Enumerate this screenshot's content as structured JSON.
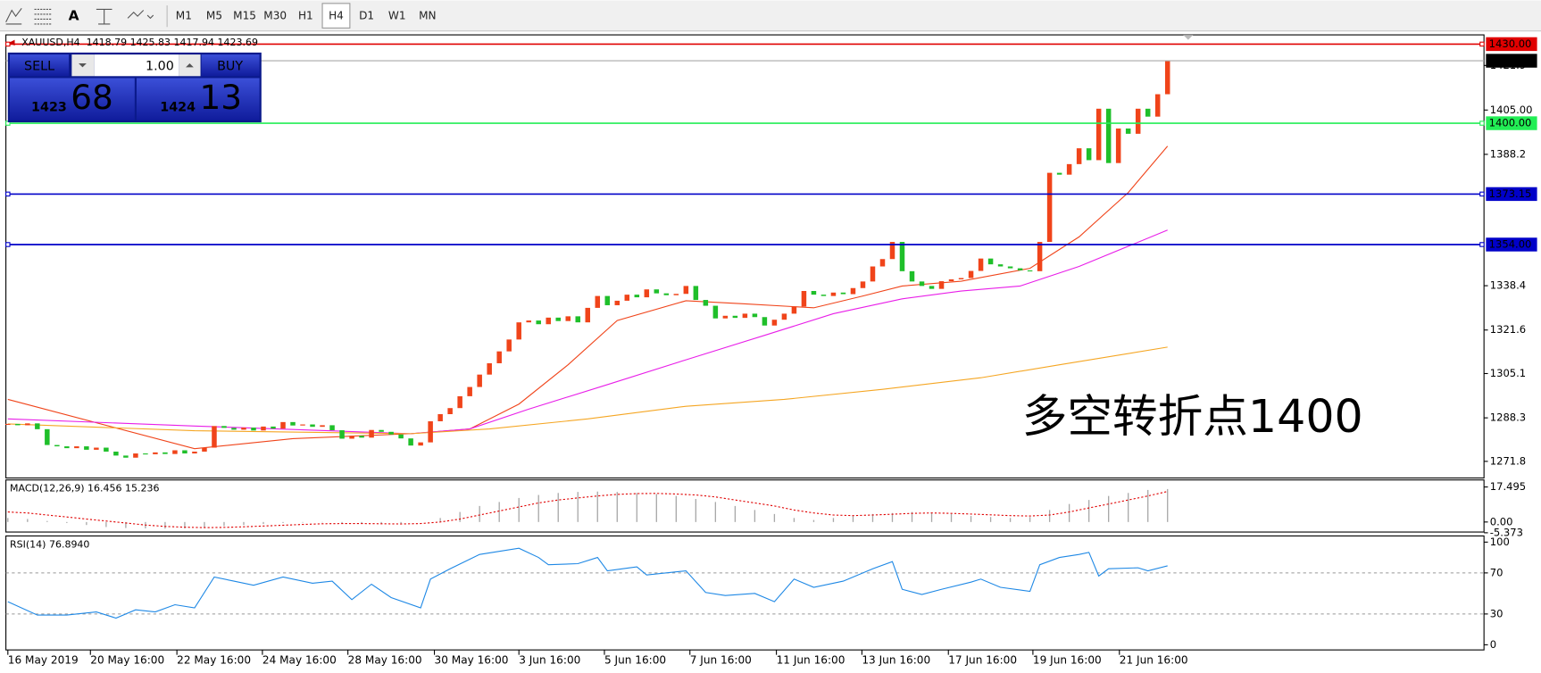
{
  "toolbar": {
    "tool_text": "A",
    "timeframes": [
      "M1",
      "M5",
      "M15",
      "M30",
      "H1",
      "H4",
      "D1",
      "W1",
      "MN"
    ],
    "active": 5
  },
  "trade_panel": {
    "sell": "SELL",
    "lots": "1.00",
    "buy": "BUY",
    "bid_big": "1423",
    "bid_small": "68",
    "ask_big": "1424",
    "ask_small": "13"
  },
  "chart_data": [
    {
      "type": "candlestick",
      "title": "XAUUSD,H4  1418.79 1425.83 1417.94 1423.69",
      "annotation": "多空转折点1400",
      "bull_color": "#f0441a",
      "bear_color": "#1fbf2a",
      "close": [
        1286,
        1285.5,
        1286.2,
        1284,
        1278,
        1277.5,
        1276.8,
        1277.5,
        1276.2,
        1277,
        1275.5,
        1274,
        1273.2,
        1274.8,
        1274.5,
        1275.2,
        1274.6,
        1276,
        1274.8,
        1275.5,
        1277,
        1285.2,
        1284.5,
        1283.8,
        1284.6,
        1283.5,
        1285,
        1284.2,
        1286.7,
        1285.4,
        1285.8,
        1284.9,
        1285.5,
        1283.6,
        1280.4,
        1281.5,
        1280.8,
        1283.7,
        1283,
        1282,
        1280.5,
        1277.8,
        1279,
        1287,
        1289.7,
        1292,
        1296.5,
        1300,
        1304.7,
        1309,
        1313.5,
        1318,
        1324.5,
        1325.2,
        1323.8,
        1326.3,
        1325,
        1326.8,
        1324.5,
        1330,
        1334.5,
        1331,
        1332.7,
        1335,
        1334,
        1337,
        1335.5,
        1334.8,
        1335.3,
        1338.3,
        1333,
        1330.8,
        1326,
        1327,
        1326.2,
        1327.8,
        1326.5,
        1323.3,
        1325.5,
        1327.8,
        1330.5,
        1336.4,
        1335,
        1334.5,
        1335.8,
        1335.2,
        1337.5,
        1340,
        1345.7,
        1348.5,
        1355,
        1343.9,
        1340,
        1338.3,
        1337.2,
        1340.1,
        1340.8,
        1341.3,
        1344,
        1348.7,
        1346.5,
        1345.7,
        1345,
        1344.2,
        1343.9,
        1355,
        1381.2,
        1380.5,
        1384.5,
        1390.5,
        1386,
        1405.5,
        1384.9,
        1398,
        1396,
        1405.5,
        1402.5,
        1411,
        1423.69
      ],
      "ma": [
        {
          "color": "#f0441a",
          "x": [
            0,
            19,
            29,
            41,
            47,
            52,
            57,
            62,
            69,
            75,
            82,
            87,
            91,
            97,
            104,
            109,
            114,
            118
          ],
          "values": [
            1295.3,
            1276.6,
            1280.4,
            1282.3,
            1284.1,
            1293.5,
            1308.4,
            1325.2,
            1332.7,
            1331.5,
            1330,
            1334.5,
            1338.3,
            1340.1,
            1345,
            1356.9,
            1373.7,
            1391.3
          ]
        },
        {
          "color": "#e81ee8",
          "x": [
            0,
            19,
            41,
            47,
            53,
            61,
            69,
            77,
            84,
            91,
            97,
            103,
            109,
            118
          ],
          "values": [
            1287.9,
            1285.2,
            1282.3,
            1284.1,
            1291.6,
            1300.9,
            1310.3,
            1319.6,
            1327.8,
            1333.4,
            1336.4,
            1338.3,
            1345.7,
            1359.5
          ]
        },
        {
          "color": "#f5a623",
          "x": [
            0,
            19,
            41,
            49,
            59,
            69,
            79,
            89,
            99,
            107,
            118
          ],
          "values": [
            1286,
            1283.4,
            1282.3,
            1284.1,
            1287.9,
            1292.7,
            1295.3,
            1299.1,
            1303.5,
            1308.4,
            1315.1
          ]
        }
      ],
      "levels": [
        {
          "value": 1430,
          "label": "1430.00",
          "color": "#e00000"
        },
        {
          "value": 1400,
          "label": "1400.00",
          "color": "#22ee55"
        },
        {
          "value": 1373.15,
          "label": "1373.15",
          "color": "#0000c8"
        },
        {
          "value": 1354,
          "label": "1354.00",
          "color": "#0000c8"
        }
      ],
      "current_price": 1423.69,
      "xlim": [
        -0.2,
        150.2
      ],
      "ylim": [
        1265.5,
        1433.5
      ],
      "yticks": [
        1421.9,
        {
          "value": 1405,
          "label": "1405.00"
        },
        1388.2,
        1338.4,
        1321.6,
        1305.1,
        1288.3,
        1271.8
      ]
    },
    {
      "type": "macd",
      "title": "MACD(12,26,9) 16.456 15.236",
      "x": [
        0,
        2,
        4,
        6,
        8,
        10,
        12,
        14,
        16,
        18,
        20,
        22,
        24,
        26,
        28,
        30,
        32,
        34,
        36,
        38,
        40,
        42,
        44,
        46,
        48,
        50,
        52,
        54,
        56,
        58,
        60,
        62,
        64,
        66,
        68,
        70,
        72,
        74,
        76,
        78,
        80,
        82,
        84,
        86,
        88,
        90,
        92,
        94,
        96,
        98,
        100,
        102,
        104,
        106,
        108,
        110,
        112,
        114,
        116,
        118
      ],
      "histogram": {
        "color": "#a8a8a8",
        "values": [
          2,
          1.5,
          0.5,
          -0.5,
          -1.5,
          -2.5,
          -3,
          -3.2,
          -3.3,
          -3.2,
          -3,
          -2,
          -1.5,
          -1,
          -0.5,
          -0.3,
          -0.2,
          -0.5,
          -0.8,
          -1,
          -1.2,
          0,
          2,
          5,
          8,
          10,
          12,
          13.5,
          14.5,
          15,
          15.2,
          15,
          14.5,
          14,
          13,
          11.5,
          10,
          8,
          6,
          4,
          2,
          1,
          2,
          3,
          4,
          4.5,
          5,
          4.5,
          4,
          3,
          2.5,
          2,
          2.5,
          6,
          9,
          11,
          13,
          14.5,
          16,
          16.456
        ]
      },
      "signal": {
        "color": "#e00000",
        "values": [
          5,
          4.5,
          3.5,
          2.5,
          1.5,
          0.5,
          -0.5,
          -1.5,
          -2.2,
          -2.6,
          -2.8,
          -2.7,
          -2.4,
          -2,
          -1.6,
          -1.2,
          -0.9,
          -0.8,
          -0.8,
          -0.9,
          -1,
          -0.8,
          0,
          1.5,
          3.5,
          5.5,
          7.5,
          9.5,
          11,
          12,
          13,
          13.8,
          14.2,
          14.3,
          14,
          13.5,
          12.5,
          11,
          9.5,
          8,
          6,
          4.5,
          3.5,
          3.2,
          3.5,
          3.9,
          4.3,
          4.5,
          4.3,
          4,
          3.6,
          3.2,
          3,
          3.5,
          5,
          7,
          9,
          11,
          13,
          15.236
        ]
      },
      "xlim": [
        -0.2,
        150.2
      ],
      "ylim": [
        -5,
        21
      ],
      "yticks": [
        17.495,
        {
          "value": 0,
          "label": "0.00"
        },
        -5.373
      ]
    },
    {
      "type": "line",
      "title": "RSI(14) 76.8940",
      "color": "#1e88e5",
      "x": [
        0,
        3,
        6,
        9,
        11,
        13,
        15,
        17,
        19,
        21,
        23,
        25,
        28,
        31,
        33,
        35,
        37,
        39,
        42,
        43,
        45,
        48,
        52,
        54,
        55,
        58,
        60,
        61,
        64,
        65,
        69,
        71,
        73,
        76,
        78,
        80,
        82,
        85,
        88,
        90,
        91,
        93,
        95,
        98,
        99,
        101,
        104,
        105,
        107,
        109,
        110,
        111,
        112,
        115,
        116,
        118
      ],
      "values": [
        42,
        29,
        29,
        32,
        26,
        34,
        32,
        39,
        36,
        66,
        62,
        58,
        66,
        60,
        62,
        44,
        59,
        46,
        36,
        64,
        74,
        88,
        94,
        85,
        78,
        79,
        85,
        72,
        76,
        68,
        72,
        51,
        48,
        50,
        42,
        64,
        56,
        62,
        74,
        81,
        54,
        49,
        54,
        61,
        64,
        56,
        52,
        78,
        85,
        88,
        90,
        67,
        74,
        75,
        72,
        76.894
      ],
      "xlim": [
        -0.2,
        150.2
      ],
      "ylim": [
        -5,
        106
      ],
      "yticks": [
        100,
        70,
        30,
        0
      ],
      "grid": "dashed",
      "xticks": [
        {
          "value": 0,
          "label": "16 May 2019"
        },
        {
          "value": 8.4,
          "label": "20 May 16:00"
        },
        {
          "value": 17.2,
          "label": "22 May 16:00"
        },
        {
          "value": 25.9,
          "label": "24 May 16:00"
        },
        {
          "value": 34.6,
          "label": "28 May 16:00"
        },
        {
          "value": 43.4,
          "label": "30 May 16:00"
        },
        {
          "value": 52,
          "label": "3 Jun 16:00"
        },
        {
          "value": 60.7,
          "label": "5 Jun 16:00"
        },
        {
          "value": 69.4,
          "label": "7 Jun 16:00"
        },
        {
          "value": 78.2,
          "label": "11 Jun 16:00"
        },
        {
          "value": 86.9,
          "label": "13 Jun 16:00"
        },
        {
          "value": 95.7,
          "label": "17 Jun 16:00"
        },
        {
          "value": 104.3,
          "label": "19 Jun 16:00"
        },
        {
          "value": 113.1,
          "label": "21 Jun 16:00"
        }
      ]
    }
  ]
}
